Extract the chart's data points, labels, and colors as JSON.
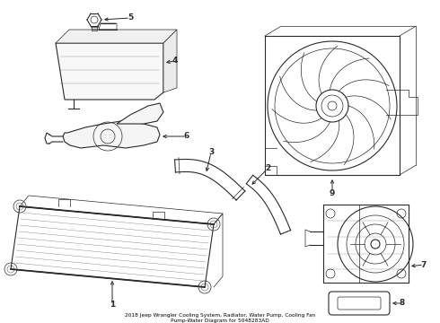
{
  "bg_color": "#ffffff",
  "line_color": "#2a2a2a",
  "label_color": "#000000",
  "title_line1": "2018 Jeep Wrangler Cooling System, Radiator, Water Pump, Cooling Fan",
  "title_line2": "Pump-Water Diagram for 5048283AD"
}
